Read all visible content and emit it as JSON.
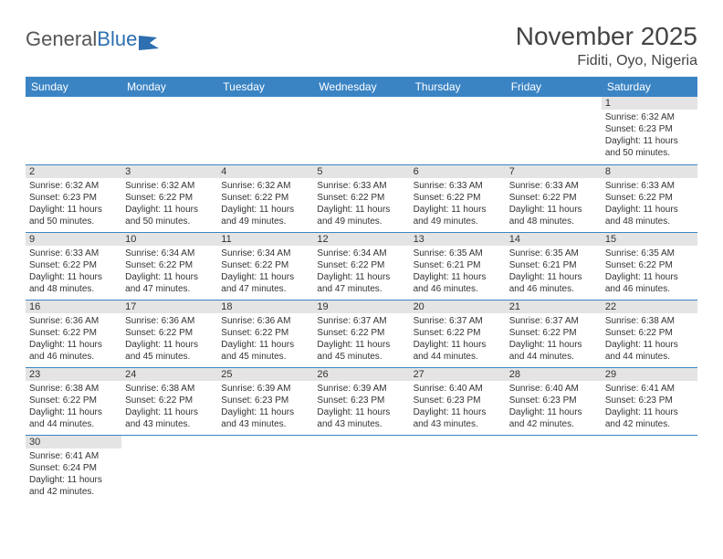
{
  "logo": {
    "general": "General",
    "blue": "Blue"
  },
  "title": "November 2025",
  "location": "Fiditi, Oyo, Nigeria",
  "weekdays": [
    "Sunday",
    "Monday",
    "Tuesday",
    "Wednesday",
    "Thursday",
    "Friday",
    "Saturday"
  ],
  "colors": {
    "header_bg": "#3b84c4",
    "header_text": "#ffffff",
    "daynum_bg": "#e4e4e4",
    "border": "#3b84c4",
    "logo_blue": "#2d6fb0"
  },
  "weeks": [
    [
      null,
      null,
      null,
      null,
      null,
      null,
      {
        "n": "1",
        "sr": "Sunrise: 6:32 AM",
        "ss": "Sunset: 6:23 PM",
        "dl": "Daylight: 11 hours and 50 minutes."
      }
    ],
    [
      {
        "n": "2",
        "sr": "Sunrise: 6:32 AM",
        "ss": "Sunset: 6:23 PM",
        "dl": "Daylight: 11 hours and 50 minutes."
      },
      {
        "n": "3",
        "sr": "Sunrise: 6:32 AM",
        "ss": "Sunset: 6:22 PM",
        "dl": "Daylight: 11 hours and 50 minutes."
      },
      {
        "n": "4",
        "sr": "Sunrise: 6:32 AM",
        "ss": "Sunset: 6:22 PM",
        "dl": "Daylight: 11 hours and 49 minutes."
      },
      {
        "n": "5",
        "sr": "Sunrise: 6:33 AM",
        "ss": "Sunset: 6:22 PM",
        "dl": "Daylight: 11 hours and 49 minutes."
      },
      {
        "n": "6",
        "sr": "Sunrise: 6:33 AM",
        "ss": "Sunset: 6:22 PM",
        "dl": "Daylight: 11 hours and 49 minutes."
      },
      {
        "n": "7",
        "sr": "Sunrise: 6:33 AM",
        "ss": "Sunset: 6:22 PM",
        "dl": "Daylight: 11 hours and 48 minutes."
      },
      {
        "n": "8",
        "sr": "Sunrise: 6:33 AM",
        "ss": "Sunset: 6:22 PM",
        "dl": "Daylight: 11 hours and 48 minutes."
      }
    ],
    [
      {
        "n": "9",
        "sr": "Sunrise: 6:33 AM",
        "ss": "Sunset: 6:22 PM",
        "dl": "Daylight: 11 hours and 48 minutes."
      },
      {
        "n": "10",
        "sr": "Sunrise: 6:34 AM",
        "ss": "Sunset: 6:22 PM",
        "dl": "Daylight: 11 hours and 47 minutes."
      },
      {
        "n": "11",
        "sr": "Sunrise: 6:34 AM",
        "ss": "Sunset: 6:22 PM",
        "dl": "Daylight: 11 hours and 47 minutes."
      },
      {
        "n": "12",
        "sr": "Sunrise: 6:34 AM",
        "ss": "Sunset: 6:22 PM",
        "dl": "Daylight: 11 hours and 47 minutes."
      },
      {
        "n": "13",
        "sr": "Sunrise: 6:35 AM",
        "ss": "Sunset: 6:21 PM",
        "dl": "Daylight: 11 hours and 46 minutes."
      },
      {
        "n": "14",
        "sr": "Sunrise: 6:35 AM",
        "ss": "Sunset: 6:21 PM",
        "dl": "Daylight: 11 hours and 46 minutes."
      },
      {
        "n": "15",
        "sr": "Sunrise: 6:35 AM",
        "ss": "Sunset: 6:22 PM",
        "dl": "Daylight: 11 hours and 46 minutes."
      }
    ],
    [
      {
        "n": "16",
        "sr": "Sunrise: 6:36 AM",
        "ss": "Sunset: 6:22 PM",
        "dl": "Daylight: 11 hours and 46 minutes."
      },
      {
        "n": "17",
        "sr": "Sunrise: 6:36 AM",
        "ss": "Sunset: 6:22 PM",
        "dl": "Daylight: 11 hours and 45 minutes."
      },
      {
        "n": "18",
        "sr": "Sunrise: 6:36 AM",
        "ss": "Sunset: 6:22 PM",
        "dl": "Daylight: 11 hours and 45 minutes."
      },
      {
        "n": "19",
        "sr": "Sunrise: 6:37 AM",
        "ss": "Sunset: 6:22 PM",
        "dl": "Daylight: 11 hours and 45 minutes."
      },
      {
        "n": "20",
        "sr": "Sunrise: 6:37 AM",
        "ss": "Sunset: 6:22 PM",
        "dl": "Daylight: 11 hours and 44 minutes."
      },
      {
        "n": "21",
        "sr": "Sunrise: 6:37 AM",
        "ss": "Sunset: 6:22 PM",
        "dl": "Daylight: 11 hours and 44 minutes."
      },
      {
        "n": "22",
        "sr": "Sunrise: 6:38 AM",
        "ss": "Sunset: 6:22 PM",
        "dl": "Daylight: 11 hours and 44 minutes."
      }
    ],
    [
      {
        "n": "23",
        "sr": "Sunrise: 6:38 AM",
        "ss": "Sunset: 6:22 PM",
        "dl": "Daylight: 11 hours and 44 minutes."
      },
      {
        "n": "24",
        "sr": "Sunrise: 6:38 AM",
        "ss": "Sunset: 6:22 PM",
        "dl": "Daylight: 11 hours and 43 minutes."
      },
      {
        "n": "25",
        "sr": "Sunrise: 6:39 AM",
        "ss": "Sunset: 6:23 PM",
        "dl": "Daylight: 11 hours and 43 minutes."
      },
      {
        "n": "26",
        "sr": "Sunrise: 6:39 AM",
        "ss": "Sunset: 6:23 PM",
        "dl": "Daylight: 11 hours and 43 minutes."
      },
      {
        "n": "27",
        "sr": "Sunrise: 6:40 AM",
        "ss": "Sunset: 6:23 PM",
        "dl": "Daylight: 11 hours and 43 minutes."
      },
      {
        "n": "28",
        "sr": "Sunrise: 6:40 AM",
        "ss": "Sunset: 6:23 PM",
        "dl": "Daylight: 11 hours and 42 minutes."
      },
      {
        "n": "29",
        "sr": "Sunrise: 6:41 AM",
        "ss": "Sunset: 6:23 PM",
        "dl": "Daylight: 11 hours and 42 minutes."
      }
    ],
    [
      {
        "n": "30",
        "sr": "Sunrise: 6:41 AM",
        "ss": "Sunset: 6:24 PM",
        "dl": "Daylight: 11 hours and 42 minutes."
      },
      null,
      null,
      null,
      null,
      null,
      null
    ]
  ]
}
